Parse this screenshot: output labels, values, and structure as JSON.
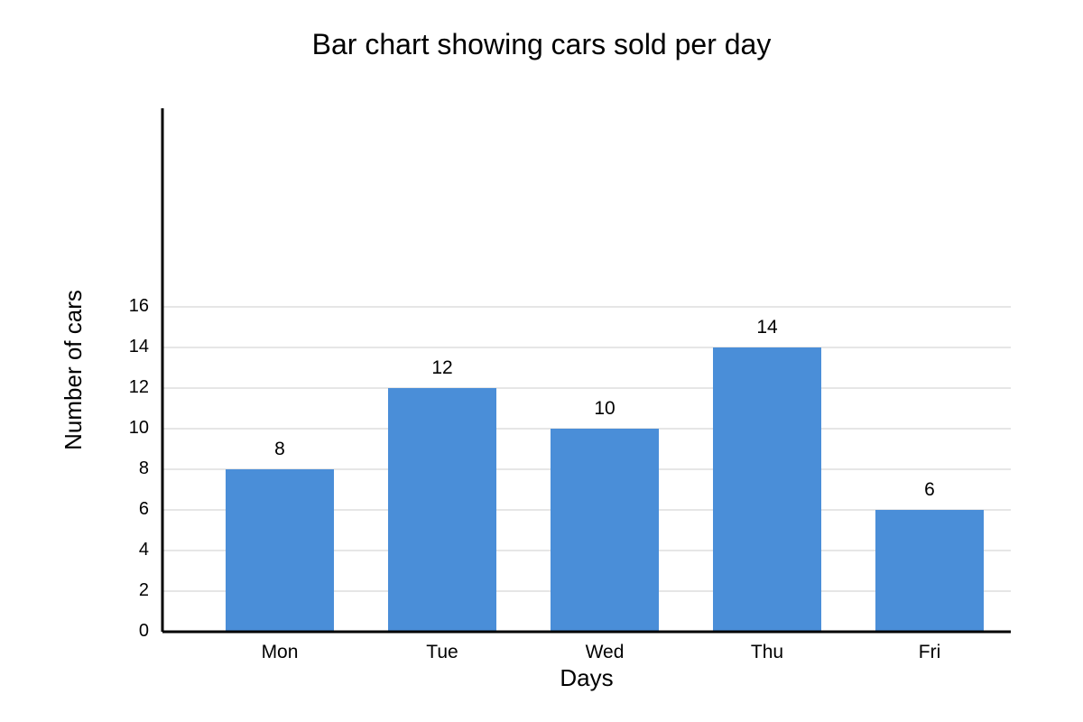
{
  "chart_data": {
    "type": "bar",
    "title": "Bar chart showing cars sold per day",
    "xlabel": "Days",
    "ylabel": "Number of cars",
    "categories": [
      "Mon",
      "Tue",
      "Wed",
      "Thu",
      "Fri"
    ],
    "values": [
      8,
      12,
      10,
      14,
      6
    ],
    "y_ticks": [
      0,
      2,
      4,
      6,
      8,
      10,
      12,
      14,
      16
    ],
    "ylim": [
      0,
      16
    ],
    "grid": true,
    "legend": "none",
    "bar_color": "#4A8ED8",
    "gridline_color": "#DDDDDD",
    "axis_color": "#000000"
  }
}
